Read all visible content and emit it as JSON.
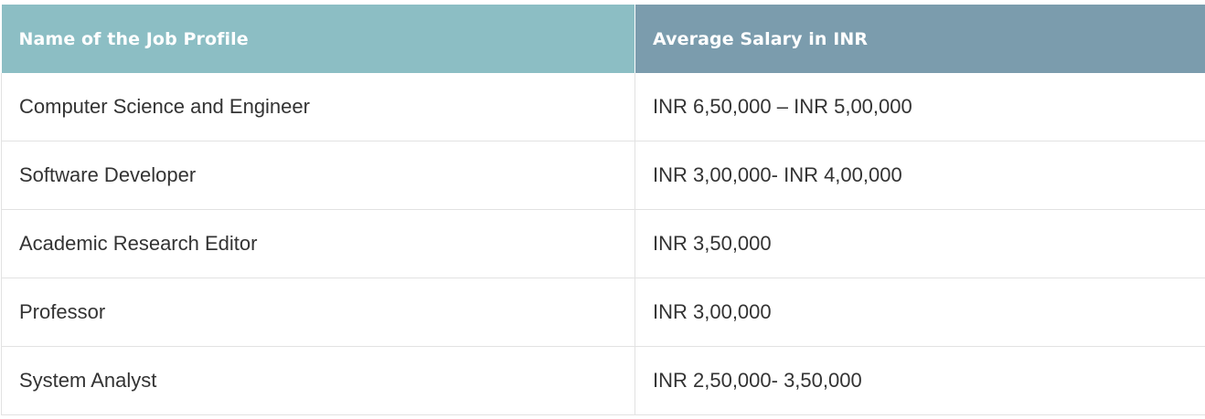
{
  "table": {
    "headers": [
      "Name of the Job Profile",
      "Average Salary in INR"
    ],
    "rows": [
      [
        "Computer Science and Engineer",
        "INR 6,50,000 – INR 5,00,000"
      ],
      [
        "Software Developer",
        "INR 3,00,000- INR 4,00,000"
      ],
      [
        "Academic Research Editor",
        "INR 3,50,000"
      ],
      [
        "Professor",
        "INR 3,00,000"
      ],
      [
        "System Analyst",
        "INR 2,50,000- 3,50,000"
      ]
    ]
  },
  "colors": {
    "header_col1_bg": "#8cbec4",
    "header_col2_bg": "#7b9cad",
    "body_text": "#333333",
    "border": "#e2e2e2"
  }
}
